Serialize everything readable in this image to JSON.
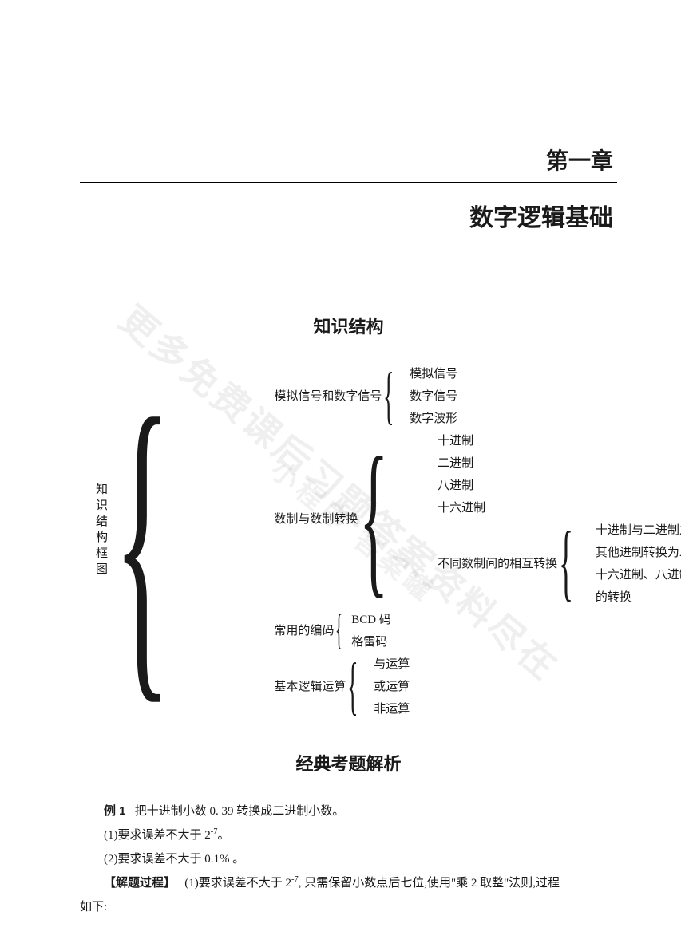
{
  "chapter": {
    "title": "第一章",
    "subtitle": "数字逻辑基础"
  },
  "sections": {
    "structure_heading": "知识结构",
    "examples_heading": "经典考题解析"
  },
  "watermark": {
    "line1": "更多免费课后习题答案资料尽在",
    "line2": "小程序  答案罐"
  },
  "tree": {
    "root_label": "知识结构框图",
    "branches": [
      {
        "label": "模拟信号和数字信号",
        "children": [
          {
            "label": "模拟信号"
          },
          {
            "label": "数字信号"
          },
          {
            "label": "数字波形"
          }
        ]
      },
      {
        "label": "数制与数制转换",
        "children": [
          {
            "label": "十进制"
          },
          {
            "label": "二进制"
          },
          {
            "label": "八进制"
          },
          {
            "label": "十六进制"
          },
          {
            "label": "不同数制间的相互转换",
            "children": [
              {
                "label": "十进制与二进制之间的相互转换"
              },
              {
                "label": "其他进制转换为二进制"
              },
              {
                "label": "十六进制、八进制和二进制间"
              },
              {
                "label": "的转换"
              }
            ]
          }
        ]
      },
      {
        "label": "常用的编码",
        "children": [
          {
            "label": "BCD 码"
          },
          {
            "label": "格雷码"
          }
        ]
      },
      {
        "label": "基本逻辑运算",
        "children": [
          {
            "label": "与运算"
          },
          {
            "label": "或运算"
          },
          {
            "label": "非运算"
          }
        ]
      }
    ]
  },
  "example": {
    "title_prefix": "例 1",
    "title_text": "把十进制小数 0. 39 转换成二进制小数。",
    "item1_prefix": "(1)要求误差不大于 2",
    "item1_sup": "-7",
    "item1_suffix": "。",
    "item2": "(2)要求误差不大于 0.1% 。",
    "solution_label": "【解题过程】",
    "solution_text_a": "(1)要求误差不大于 2",
    "solution_sup": "-7",
    "solution_text_b": ", 只需保留小数点后七位,使用\"乘 2 取整\"法则,过程",
    "solution_cont": "如下:"
  },
  "style": {
    "text_color": "#1a1a1a",
    "body_fontsize": 15,
    "heading_fontsize": 22,
    "chapter_fontsize": 28,
    "subtitle_fontsize": 30,
    "background": "#ffffff"
  }
}
